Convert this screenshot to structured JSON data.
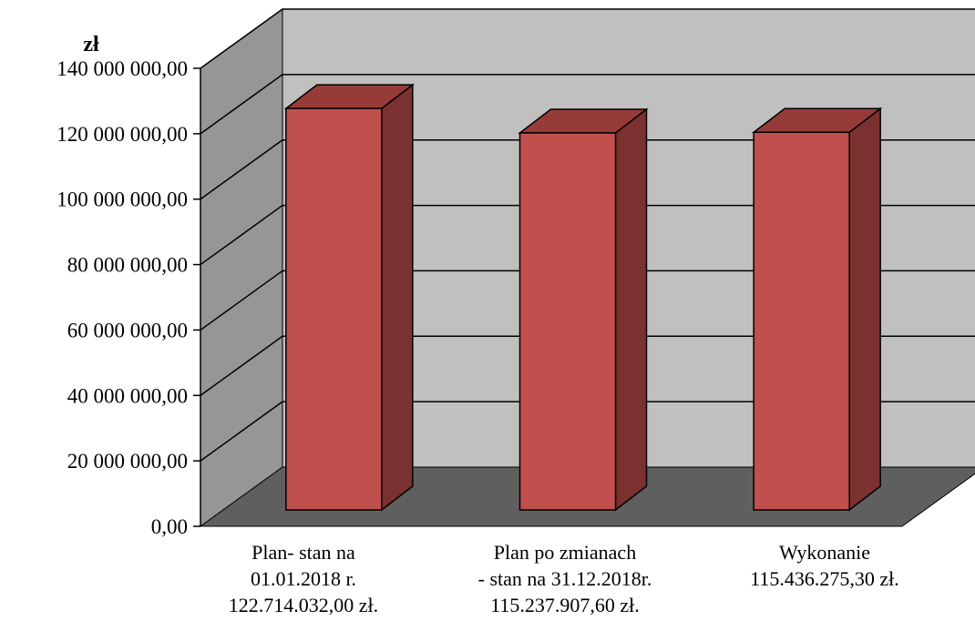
{
  "chart_data": {
    "type": "bar",
    "ylabel": "zł",
    "categories": [
      [
        "Plan- stan na",
        "01.01.2018 r.",
        "122.714.032,00 zł."
      ],
      [
        "Plan po zmianach",
        "- stan na 31.12.2018r.",
        "115.237.907,60 zł."
      ],
      [
        "Wykonanie",
        "115.436.275,30 zł."
      ]
    ],
    "values": [
      122714032.0,
      115237907.6,
      115436275.3
    ],
    "ylim": [
      0,
      140000000
    ],
    "yticks": [
      0,
      20000000,
      40000000,
      60000000,
      80000000,
      100000000,
      120000000,
      140000000
    ],
    "ytick_labels": [
      "0,00",
      "20 000 000,00",
      "40 000 000,00",
      "60 000 000,00",
      "80 000 000,00",
      "100 000 000,00",
      "120 000 000,00",
      "140 000 000,00"
    ],
    "grid": true,
    "style": "3d-column",
    "colors": {
      "bar_front": "#c0504d",
      "bar_top": "#963b38",
      "bar_side": "#7b3130",
      "back_wall": "#c0c0c0",
      "side_wall": "#969696",
      "floor": "#5f5f5f"
    }
  }
}
